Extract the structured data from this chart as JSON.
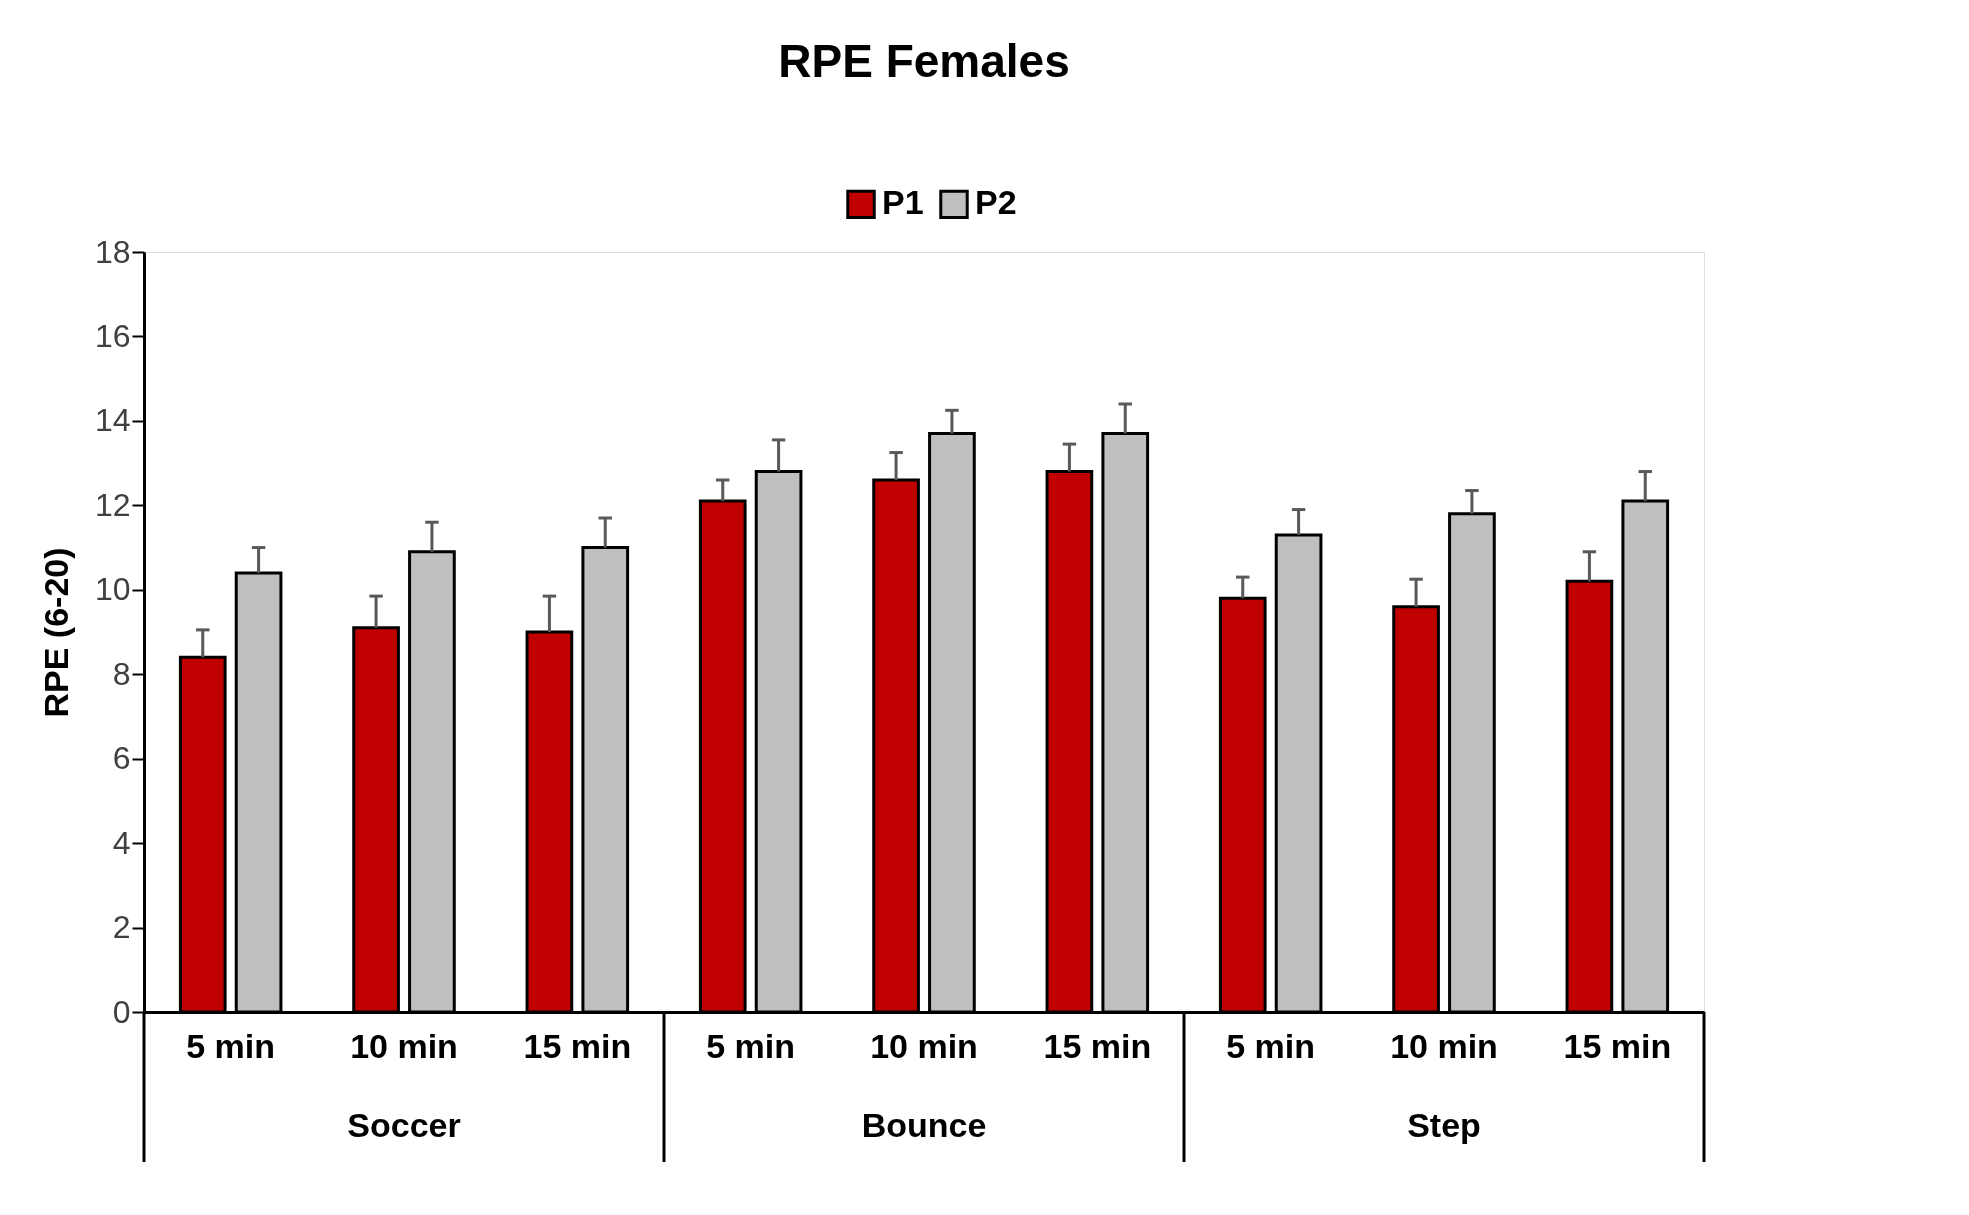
{
  "chart_data": {
    "type": "bar",
    "title": "RPE Females",
    "ylabel": "RPE (6-20)",
    "categories": [
      "5 min",
      "10 min",
      "15 min",
      "5 min",
      "10 min",
      "15 min",
      "5 min",
      "10 min",
      "15 min"
    ],
    "annotations": [
      "Soccer",
      "Bounce",
      "Step"
    ],
    "series": [
      {
        "name": "P1",
        "color": "#c00000",
        "values": [
          8.4,
          9.1,
          9.0,
          12.1,
          12.6,
          12.8,
          9.8,
          9.6,
          10.2
        ],
        "errors": [
          [
            8.4,
            9.05
          ],
          [
            9.1,
            9.85
          ],
          [
            9.0,
            9.85
          ],
          [
            12.1,
            12.6
          ],
          [
            12.6,
            13.25
          ],
          [
            12.8,
            13.45
          ],
          [
            9.8,
            10.3
          ],
          [
            9.6,
            10.25
          ],
          [
            10.2,
            10.9
          ]
        ]
      },
      {
        "name": "P2",
        "color": "#bfbfbf",
        "values": [
          10.4,
          10.9,
          11.0,
          12.8,
          13.7,
          13.7,
          11.3,
          11.8,
          12.1
        ],
        "errors": [
          [
            10.4,
            11.0
          ],
          [
            10.9,
            11.6
          ],
          [
            11.0,
            11.7
          ],
          [
            12.8,
            13.55
          ],
          [
            13.7,
            14.25
          ],
          [
            13.7,
            14.4
          ],
          [
            11.3,
            11.9
          ],
          [
            11.8,
            12.35
          ],
          [
            12.1,
            12.8
          ]
        ]
      }
    ],
    "ylim": [
      0,
      18
    ],
    "yticks": [
      0,
      2,
      4,
      6,
      8,
      10,
      12,
      14,
      16,
      18
    ],
    "grid": false,
    "legend": "top"
  }
}
